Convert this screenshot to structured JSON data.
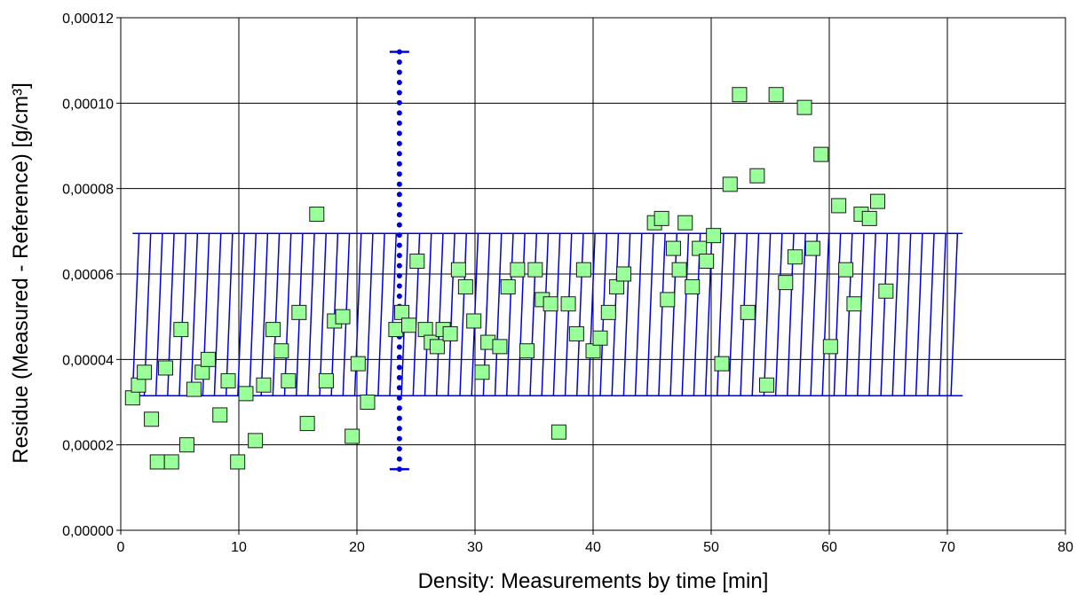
{
  "chart_data": {
    "type": "scatter",
    "title": "",
    "xlabel": "Density: Measurements by time [min]",
    "ylabel": "Residue (Measured - Reference) [g/cm³]",
    "xlim": [
      0,
      80
    ],
    "ylim": [
      0,
      0.00012
    ],
    "x_ticks": [
      0,
      10,
      20,
      30,
      40,
      50,
      60,
      70,
      80
    ],
    "x_tick_labels": [
      "0",
      "10",
      "20",
      "30",
      "40",
      "50",
      "60",
      "70",
      "80"
    ],
    "y_ticks": [
      0,
      2e-05,
      4e-05,
      6e-05,
      8e-05,
      0.0001,
      0.00012
    ],
    "y_tick_labels": [
      "0,00000",
      "0,00002",
      "0,00004",
      "0,00006",
      "0,00008",
      "0,00010",
      "0,00012"
    ],
    "grid": true,
    "legend": "none",
    "series": [
      {
        "marker": "square",
        "color": "#99ff99",
        "edge_color": "#1a1a1a",
        "points": [
          [
            1.0,
            3.1e-05
          ],
          [
            1.5,
            3.4e-05
          ],
          [
            2.0,
            3.7e-05
          ],
          [
            2.6,
            2.6e-05
          ],
          [
            3.1,
            1.6e-05
          ],
          [
            3.8,
            3.8e-05
          ],
          [
            4.3,
            1.6e-05
          ],
          [
            5.1,
            4.7e-05
          ],
          [
            5.6,
            2e-05
          ],
          [
            6.2,
            3.3e-05
          ],
          [
            6.9,
            3.7e-05
          ],
          [
            7.4,
            4e-05
          ],
          [
            8.4,
            2.7e-05
          ],
          [
            9.1,
            3.5e-05
          ],
          [
            9.9,
            1.6e-05
          ],
          [
            10.6,
            3.2e-05
          ],
          [
            11.4,
            2.1e-05
          ],
          [
            12.1,
            3.4e-05
          ],
          [
            12.9,
            4.7e-05
          ],
          [
            13.6,
            4.2e-05
          ],
          [
            14.2,
            3.5e-05
          ],
          [
            15.1,
            5.1e-05
          ],
          [
            15.8,
            2.5e-05
          ],
          [
            16.6,
            7.4e-05
          ],
          [
            17.4,
            3.5e-05
          ],
          [
            18.1,
            4.9e-05
          ],
          [
            18.8,
            5e-05
          ],
          [
            19.6,
            2.2e-05
          ],
          [
            20.1,
            3.9e-05
          ],
          [
            20.9,
            3e-05
          ],
          [
            23.3,
            4.7e-05
          ],
          [
            23.8,
            5.1e-05
          ],
          [
            24.4,
            4.8e-05
          ],
          [
            25.1,
            6.3e-05
          ],
          [
            25.8,
            4.7e-05
          ],
          [
            26.3,
            4.4e-05
          ],
          [
            26.8,
            4.3e-05
          ],
          [
            27.3,
            4.7e-05
          ],
          [
            27.9,
            4.6e-05
          ],
          [
            28.6,
            6.1e-05
          ],
          [
            29.2,
            5.7e-05
          ],
          [
            29.9,
            4.9e-05
          ],
          [
            30.6,
            3.7e-05
          ],
          [
            31.1,
            4.4e-05
          ],
          [
            32.1,
            4.3e-05
          ],
          [
            32.8,
            5.7e-05
          ],
          [
            33.6,
            6.1e-05
          ],
          [
            34.4,
            4.2e-05
          ],
          [
            35.1,
            6.1e-05
          ],
          [
            35.7,
            5.4e-05
          ],
          [
            36.4,
            5.3e-05
          ],
          [
            37.1,
            2.3e-05
          ],
          [
            37.9,
            5.3e-05
          ],
          [
            38.6,
            4.6e-05
          ],
          [
            39.2,
            6.1e-05
          ],
          [
            40.0,
            4.2e-05
          ],
          [
            40.6,
            4.5e-05
          ],
          [
            41.3,
            5.1e-05
          ],
          [
            42.0,
            5.7e-05
          ],
          [
            42.6,
            6e-05
          ],
          [
            45.2,
            7.2e-05
          ],
          [
            45.8,
            7.3e-05
          ],
          [
            46.3,
            5.4e-05
          ],
          [
            46.8,
            6.6e-05
          ],
          [
            47.3,
            6.1e-05
          ],
          [
            47.8,
            7.2e-05
          ],
          [
            48.4,
            5.7e-05
          ],
          [
            49.0,
            6.6e-05
          ],
          [
            49.6,
            6.3e-05
          ],
          [
            50.2,
            6.9e-05
          ],
          [
            50.9,
            3.9e-05
          ],
          [
            51.6,
            8.1e-05
          ],
          [
            52.4,
            0.000102
          ],
          [
            53.1,
            5.1e-05
          ],
          [
            53.9,
            8.3e-05
          ],
          [
            54.7,
            3.4e-05
          ],
          [
            55.5,
            0.000102
          ],
          [
            56.3,
            5.8e-05
          ],
          [
            57.1,
            6.4e-05
          ],
          [
            57.9,
            9.9e-05
          ],
          [
            58.6,
            6.6e-05
          ],
          [
            59.3,
            8.8e-05
          ],
          [
            60.1,
            4.3e-05
          ],
          [
            60.8,
            7.6e-05
          ],
          [
            61.4,
            6.1e-05
          ],
          [
            62.1,
            5.3e-05
          ],
          [
            62.7,
            7.4e-05
          ],
          [
            63.4,
            7.3e-05
          ],
          [
            64.1,
            7.7e-05
          ],
          [
            64.8,
            5.6e-05
          ]
        ]
      }
    ],
    "band": {
      "color": "#0000dd",
      "x_start": 1.0,
      "x_end": 71.3,
      "y_low": 3.15e-05,
      "y_high": 6.95e-05,
      "line_count": 71
    },
    "error_bar": {
      "color": "#0000dd",
      "x": 23.6,
      "y_low": 1.43e-05,
      "y_high": 0.000112
    }
  }
}
